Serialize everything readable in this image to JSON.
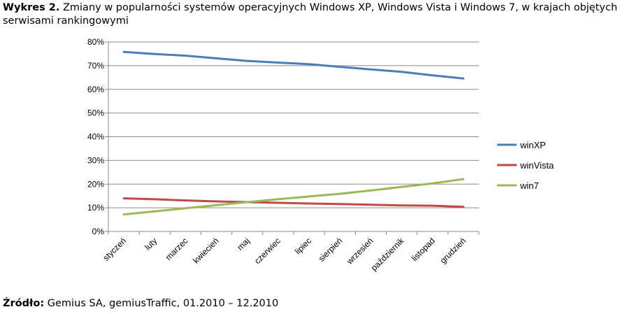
{
  "title": {
    "prefix": "Wykres 2.",
    "text": "Zmiany w popularności systemów operacyjnych Windows XP, Windows Vista i Windows 7, w krajach objętych serwisami rankingowymi"
  },
  "source": {
    "prefix": "Źródło:",
    "text": "Gemius SA, gemiusTraffic, 01.2010 – 12.2010"
  },
  "chart_data": {
    "type": "line",
    "title": "Zmiany w popularności systemów operacyjnych Windows XP, Windows Vista i Windows 7, w krajach objętych serwisami rankingowymi",
    "xlabel": "",
    "ylabel": "",
    "ylim": [
      0,
      80
    ],
    "yticks": [
      "0%",
      "10%",
      "20%",
      "30%",
      "40%",
      "50%",
      "60%",
      "70%",
      "80%"
    ],
    "grid": true,
    "legend_position": "right",
    "categories": [
      "styczeń",
      "luty",
      "marzec",
      "kwiecień",
      "maj",
      "czerwiec",
      "lipiec",
      "sierpień",
      "wrzesień",
      "październik",
      "listopad",
      "grudzień"
    ],
    "series": [
      {
        "name": "winXP",
        "color": "#4A7EBB",
        "values": [
          75.8,
          74.9,
          74.2,
          73.1,
          72.0,
          71.3,
          70.6,
          69.5,
          68.4,
          67.4,
          65.9,
          64.6
        ]
      },
      {
        "name": "winVista",
        "color": "#BE4B48",
        "values": [
          14.0,
          13.6,
          13.1,
          12.7,
          12.4,
          12.1,
          11.8,
          11.6,
          11.3,
          11.0,
          10.9,
          10.4
        ]
      },
      {
        "name": "win7",
        "color": "#98B954",
        "values": [
          7.2,
          8.5,
          9.8,
          11.1,
          12.4,
          13.6,
          14.8,
          15.9,
          17.3,
          18.8,
          20.3,
          22.1
        ]
      }
    ]
  }
}
